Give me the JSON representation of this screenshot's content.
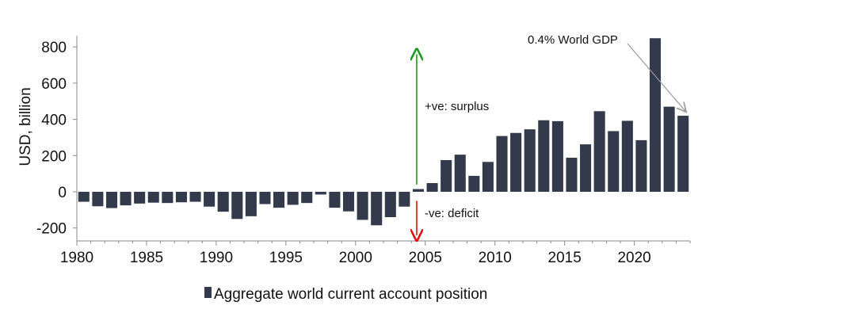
{
  "chart_data": {
    "type": "bar",
    "ylabel": "USD, billion",
    "ylim": [
      -250,
      850
    ],
    "yticks": [
      -200,
      0,
      200,
      400,
      600,
      800
    ],
    "xlim": [
      1980,
      2024
    ],
    "xticks": [
      1980,
      1985,
      1990,
      1995,
      2000,
      2005,
      2010,
      2015,
      2020
    ],
    "series": [
      {
        "name": "Aggregate world current account position",
        "color": "#323a4c",
        "x": [
          1980,
          1981,
          1982,
          1983,
          1984,
          1985,
          1986,
          1987,
          1988,
          1989,
          1990,
          1991,
          1992,
          1993,
          1994,
          1995,
          1996,
          1997,
          1998,
          1999,
          2000,
          2001,
          2002,
          2003,
          2004,
          2005,
          2006,
          2007,
          2008,
          2009,
          2010,
          2011,
          2012,
          2013,
          2014,
          2015,
          2016,
          2017,
          2018,
          2019,
          2020,
          2021,
          2022,
          2023
        ],
        "values": [
          -55,
          -80,
          -90,
          -75,
          -65,
          -60,
          -62,
          -58,
          -55,
          -82,
          -110,
          -150,
          -135,
          -68,
          -88,
          -72,
          -62,
          -15,
          -88,
          -108,
          -155,
          -185,
          -140,
          -82,
          15,
          48,
          175,
          205,
          88,
          165,
          308,
          325,
          345,
          395,
          390,
          188,
          262,
          445,
          335,
          392,
          285,
          848,
          470,
          420
        ]
      }
    ],
    "annotations": {
      "surplus": "+ve: surplus",
      "deficit": "-ve: deficit",
      "gdp": "0.4% World GDP"
    },
    "legend_position": "bottom",
    "grid": false,
    "colors": {
      "surplus_arrow": "#1a9a1a",
      "deficit_arrow": "#e01010",
      "callout_arrow": "#9a9a9a"
    }
  }
}
